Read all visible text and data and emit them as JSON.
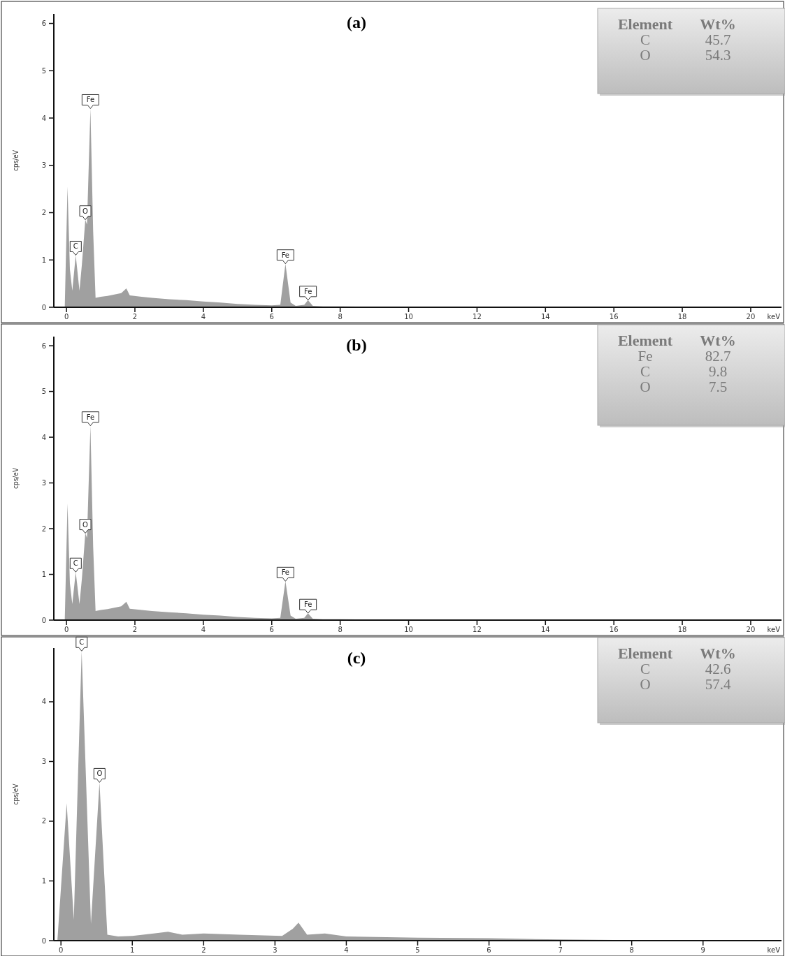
{
  "chart_data": [
    {
      "type": "area",
      "title": "(a)",
      "xlabel": "keV",
      "ylabel": "cps/eV",
      "xlim": [
        -0.37,
        20.9
      ],
      "ylim": [
        0,
        6.2
      ],
      "xticks": [
        0,
        2,
        4,
        6,
        8,
        10,
        12,
        14,
        16,
        18,
        20
      ],
      "yticks": [
        0,
        1,
        2,
        3,
        4,
        5,
        6
      ],
      "grid": false,
      "series": [
        {
          "color": "#a0a0a0",
          "x": [
            -0.05,
            0.03,
            0.1,
            0.17,
            0.27,
            0.38,
            0.45,
            0.55,
            0.6,
            0.7,
            0.78,
            0.85,
            1.0,
            1.2,
            1.4,
            1.6,
            1.75,
            1.85,
            2.2,
            2.5,
            3.0,
            3.5,
            4.0,
            4.5,
            5.0,
            5.5,
            6.0,
            6.25,
            6.4,
            6.55,
            6.7,
            6.95,
            7.06,
            7.2,
            7.5,
            8.0,
            9.0,
            10.0,
            12.0,
            15.0,
            20.9
          ],
          "values": [
            0,
            2.55,
            0.8,
            0.35,
            1.1,
            0.35,
            0.9,
            1.85,
            1.75,
            4.2,
            1.6,
            0.2,
            0.22,
            0.24,
            0.27,
            0.3,
            0.4,
            0.25,
            0.22,
            0.2,
            0.17,
            0.15,
            0.12,
            0.1,
            0.07,
            0.05,
            0.04,
            0.05,
            0.92,
            0.1,
            0.03,
            0.05,
            0.15,
            0.03,
            0.02,
            0.02,
            0.01,
            0.01,
            0,
            0,
            0
          ]
        }
      ],
      "annotations": [
        {
          "text": "C",
          "x": 0.27,
          "y": 1.1
        },
        {
          "text": "O",
          "x": 0.55,
          "y": 1.85
        },
        {
          "text": "Fe",
          "x": 0.7,
          "y": 4.2
        },
        {
          "text": "Fe",
          "x": 6.4,
          "y": 0.92
        },
        {
          "text": "Fe",
          "x": 7.06,
          "y": 0.15
        },
        "Element",
        "Wt%",
        "C",
        "45.7",
        "O",
        "54.3"
      ]
    },
    {
      "type": "area",
      "title": "(b)",
      "xlabel": "keV",
      "ylabel": "cps/eV",
      "xlim": [
        -0.37,
        20.9
      ],
      "ylim": [
        0,
        6.2
      ],
      "xticks": [
        0,
        2,
        4,
        6,
        8,
        10,
        12,
        14,
        16,
        18,
        20
      ],
      "yticks": [
        0,
        1,
        2,
        3,
        4,
        5,
        6
      ],
      "grid": false,
      "series": [
        {
          "color": "#a0a0a0",
          "x": [
            -0.05,
            0.03,
            0.1,
            0.17,
            0.27,
            0.38,
            0.45,
            0.55,
            0.6,
            0.7,
            0.78,
            0.85,
            1.0,
            1.2,
            1.4,
            1.6,
            1.75,
            1.85,
            2.2,
            2.5,
            3.0,
            3.5,
            4.0,
            4.5,
            5.0,
            5.5,
            6.0,
            6.25,
            6.4,
            6.55,
            6.7,
            6.95,
            7.06,
            7.2,
            7.5,
            8.0,
            9.0,
            10.0,
            12.0,
            15.0,
            20.9
          ],
          "values": [
            0,
            2.55,
            0.8,
            0.35,
            1.05,
            0.35,
            0.9,
            1.9,
            1.8,
            4.25,
            1.6,
            0.2,
            0.22,
            0.24,
            0.27,
            0.3,
            0.4,
            0.25,
            0.22,
            0.2,
            0.17,
            0.15,
            0.12,
            0.1,
            0.07,
            0.05,
            0.04,
            0.05,
            0.85,
            0.1,
            0.03,
            0.05,
            0.15,
            0.03,
            0.02,
            0.02,
            0.01,
            0.01,
            0,
            0,
            0
          ]
        }
      ],
      "annotations": [
        {
          "text": "C",
          "x": 0.27,
          "y": 1.05
        },
        {
          "text": "O",
          "x": 0.55,
          "y": 1.9
        },
        {
          "text": "Fe",
          "x": 0.7,
          "y": 4.25
        },
        {
          "text": "Fe",
          "x": 6.4,
          "y": 0.85
        },
        {
          "text": "Fe",
          "x": 7.06,
          "y": 0.15
        },
        "Element",
        "Wt%",
        "Fe",
        "82.7",
        "C",
        "9.8",
        "O",
        "7.5"
      ]
    },
    {
      "type": "area",
      "title": "(c)",
      "xlabel": "keV",
      "ylabel": "cps/eV",
      "xlim": [
        -0.1,
        10.1
      ],
      "ylim": [
        0,
        4.9
      ],
      "xticks": [
        0,
        1,
        2,
        3,
        4,
        5,
        6,
        7,
        8,
        9
      ],
      "yticks": [
        0,
        1,
        2,
        3,
        4
      ],
      "grid": false,
      "series": [
        {
          "color": "#a0a0a0",
          "x": [
            -0.05,
            0.08,
            0.18,
            0.29,
            0.42,
            0.54,
            0.65,
            0.8,
            1.0,
            1.3,
            1.5,
            1.7,
            2.0,
            2.5,
            3.1,
            3.25,
            3.33,
            3.45,
            3.7,
            4.0,
            5.0,
            6.0,
            7.0,
            8.0,
            9.0,
            10.1
          ],
          "values": [
            0,
            2.3,
            0.35,
            4.85,
            0.28,
            2.65,
            0.1,
            0.07,
            0.08,
            0.12,
            0.15,
            0.1,
            0.12,
            0.1,
            0.08,
            0.2,
            0.3,
            0.1,
            0.12,
            0.07,
            0.05,
            0.04,
            0.02,
            0.01,
            0.01,
            0
          ]
        }
      ],
      "annotations": [
        {
          "text": "C",
          "x": 0.29,
          "y": 4.85
        },
        {
          "text": "O",
          "x": 0.54,
          "y": 2.65
        },
        "Element",
        "Wt%",
        "C",
        "42.6",
        "O",
        "57.4"
      ]
    }
  ]
}
